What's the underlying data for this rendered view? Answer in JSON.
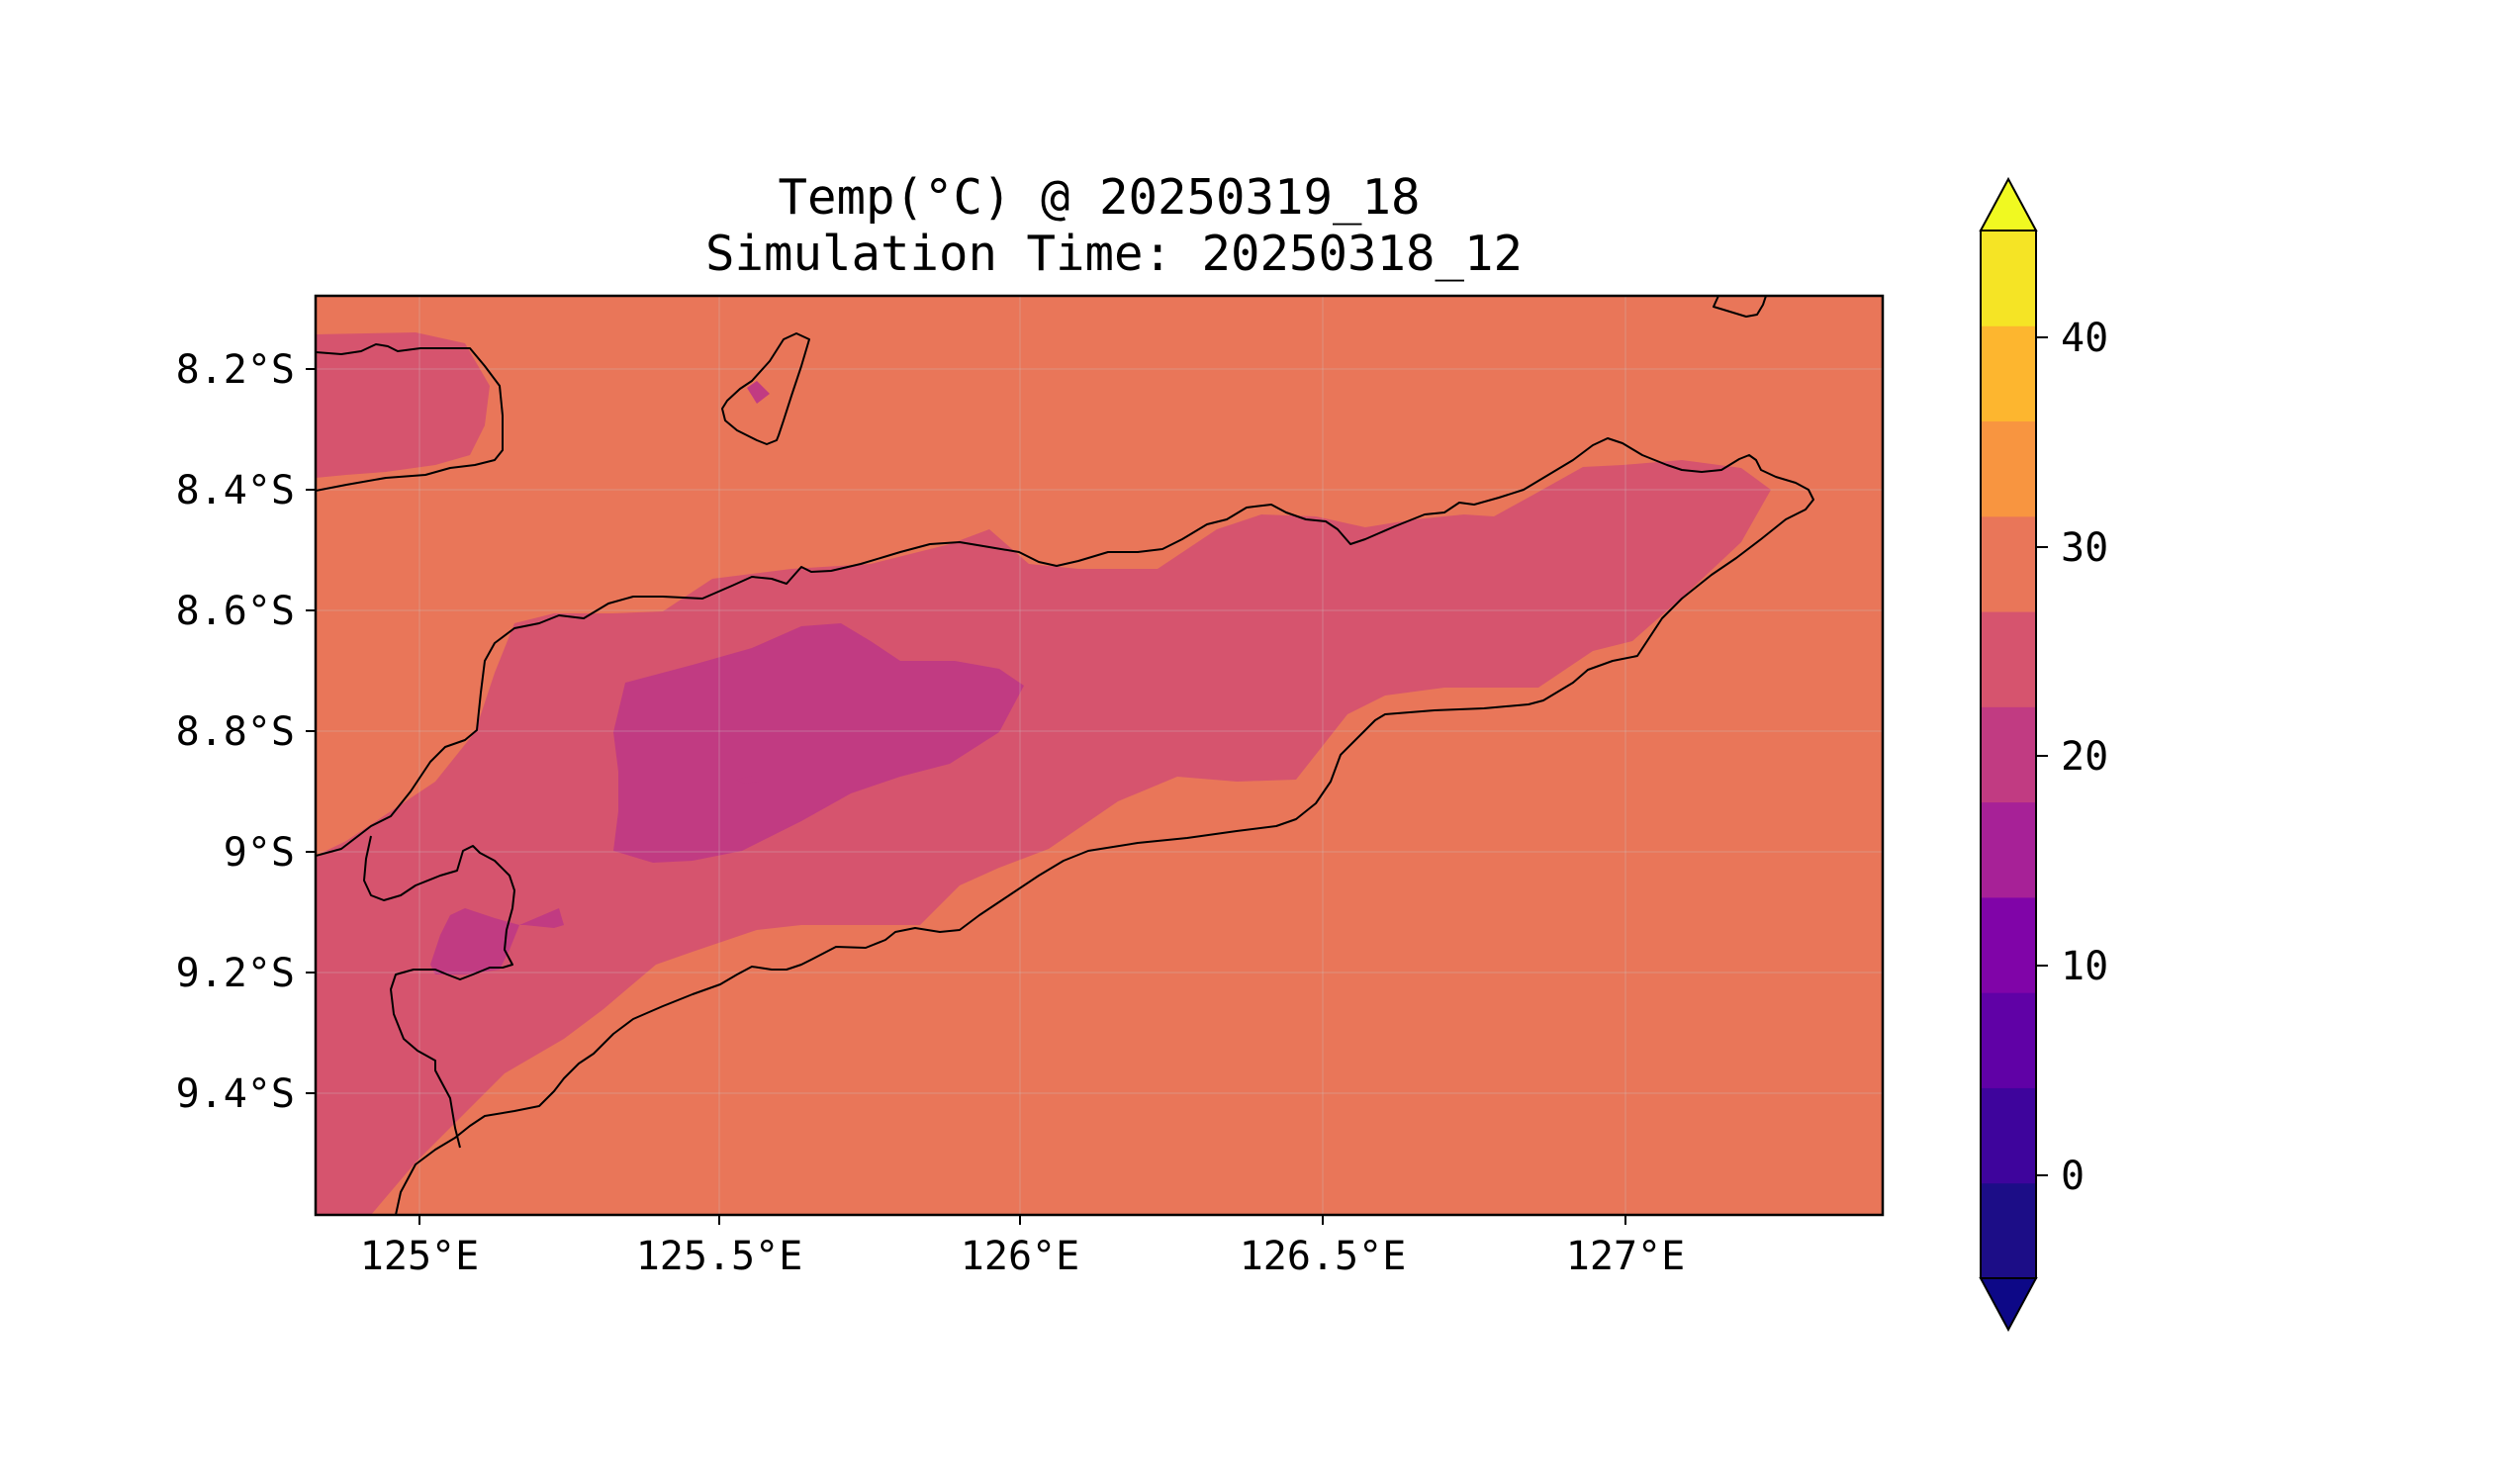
{
  "title": {
    "line1": "Temp(°C) @ 20250319_18",
    "line2": "Simulation Time: 20250318_12"
  },
  "map": {
    "x_ticks": [
      "125°E",
      "125.5°E",
      "126°E",
      "126.5°E",
      "127°E"
    ],
    "y_ticks": [
      "8.2°S",
      "8.4°S",
      "8.6°S",
      "8.8°S",
      "9°S",
      "9.2°S",
      "9.4°S"
    ],
    "lon_range": [
      124.82,
      127.42
    ],
    "lat_range": [
      -9.6,
      -8.08
    ],
    "background_color": "#e97659",
    "level_colors": {
      "25-30": "#e97659",
      "20-25": "#d6546e",
      "15-20": "#c13b82",
      "10-15": "#a72197"
    }
  },
  "colorbar": {
    "labels": [
      "40",
      "30",
      "20",
      "10",
      "0"
    ],
    "colors": [
      "#1c0d87",
      "#3e049c",
      "#6001a6",
      "#8004a8",
      "#a72197",
      "#c13b82",
      "#d6546e",
      "#e97659",
      "#f89540",
      "#fdb62f",
      "#f5e425"
    ],
    "extend_low_color": "#0d0887",
    "extend_high_color": "#f0f921",
    "levels": [
      -5,
      0,
      5,
      10,
      15,
      20,
      25,
      30,
      35,
      40,
      45
    ]
  }
}
